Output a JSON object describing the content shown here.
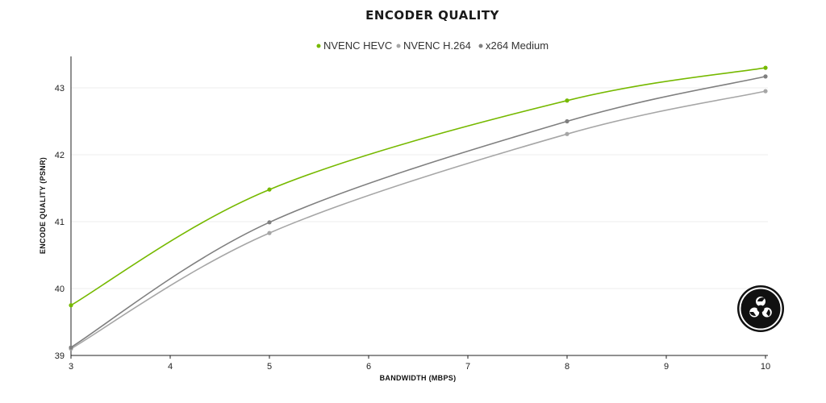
{
  "chart_data": {
    "type": "line",
    "title": "ENCODER QUALITY",
    "xlabel": "BANDWIDTH (MBPS)",
    "ylabel": "ENCODE QUALITY (PSNR)",
    "xlim": [
      3,
      10
    ],
    "ylim": [
      39,
      43.5
    ],
    "xticks": [
      "3",
      "4",
      "5",
      "6",
      "7",
      "8",
      "9",
      "10"
    ],
    "yticks": [
      "39",
      "40",
      "41",
      "42",
      "43"
    ],
    "grid": true,
    "legend": "top-center",
    "series": [
      {
        "name": "NVENC HEVC",
        "color": "#76b900",
        "x": [
          3,
          5,
          8,
          10
        ],
        "y": [
          39.75,
          41.48,
          42.81,
          43.3
        ]
      },
      {
        "name": "NVENC H.264",
        "color": "#a6a6a6",
        "x": [
          3,
          5,
          8,
          10
        ],
        "y": [
          39.1,
          40.83,
          42.31,
          42.95
        ]
      },
      {
        "name": "x264 Medium",
        "color": "#7f7f7f",
        "x": [
          3,
          5,
          8,
          10
        ],
        "y": [
          39.12,
          40.99,
          42.5,
          43.17
        ]
      }
    ]
  },
  "logo": {
    "icon": "obs-logo-icon"
  }
}
